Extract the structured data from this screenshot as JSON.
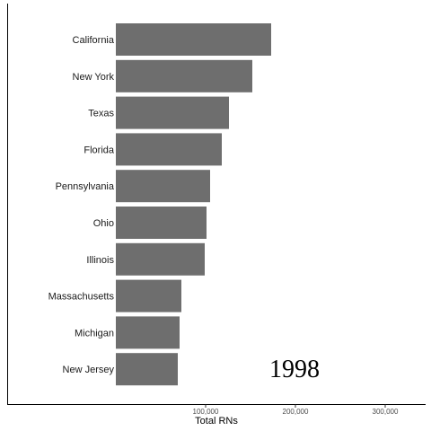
{
  "chart_data": {
    "type": "bar",
    "orientation": "horizontal",
    "categories": [
      "California",
      "New York",
      "Texas",
      "Florida",
      "Pennsylvania",
      "Ohio",
      "Illinois",
      "Massachusetts",
      "Michigan",
      "New Jersey"
    ],
    "values": [
      173000,
      152000,
      126000,
      118000,
      105000,
      101000,
      99000,
      73000,
      71000,
      69000
    ],
    "xlabel": "Total RNs",
    "ylabel": "",
    "xlim": [
      0,
      350000
    ],
    "xticks": [
      100000,
      200000,
      300000
    ],
    "xtick_labels": [
      "100,000",
      "200,000",
      "300,000"
    ],
    "annotation": "1998",
    "bar_color": "#6e6e6e",
    "grid": false,
    "legend": "none"
  }
}
